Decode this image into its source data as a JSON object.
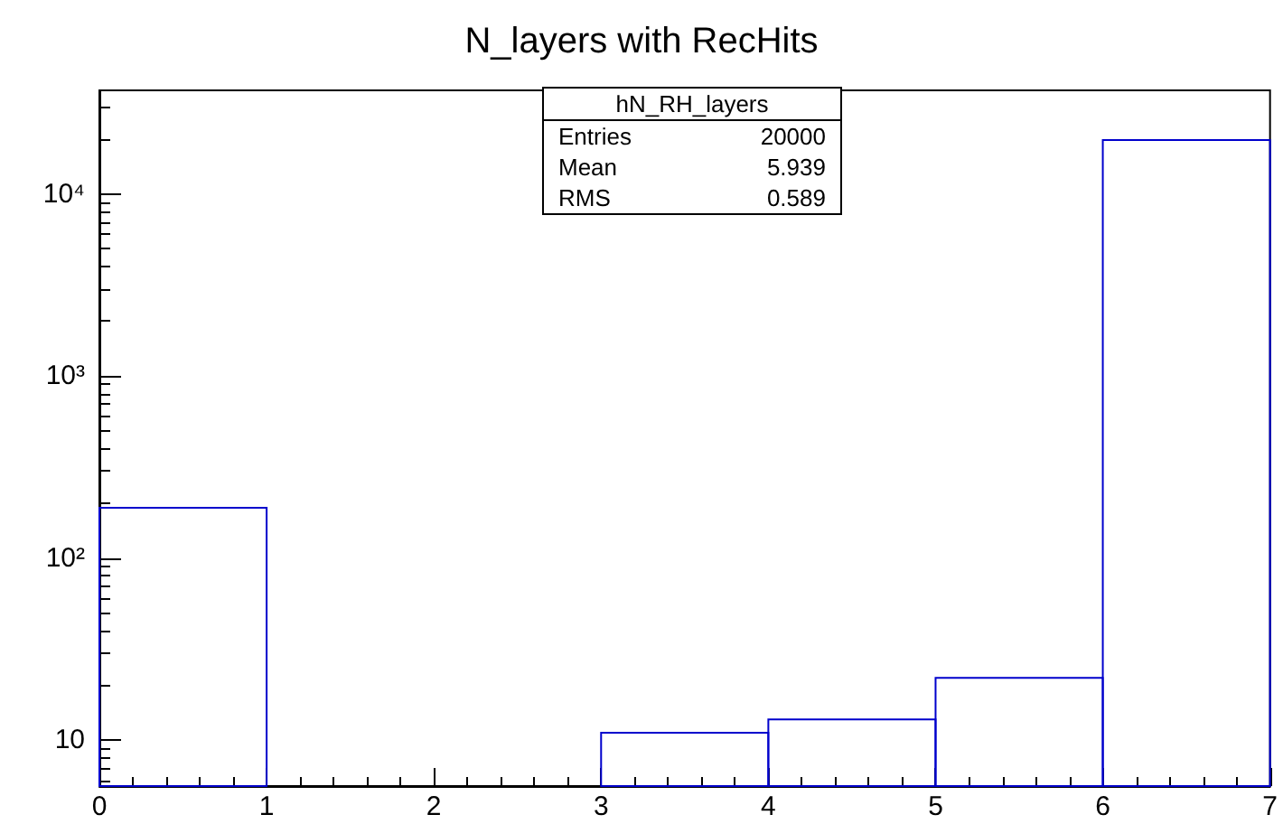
{
  "chart_data": {
    "type": "histogram",
    "title": "N_layers with RecHits",
    "bins": [
      0,
      1,
      2,
      3,
      4,
      5,
      6,
      7
    ],
    "values": [
      189,
      null,
      null,
      11,
      13,
      22,
      19765
    ],
    "color": "#0000cc",
    "log": "y",
    "xlim": [
      0,
      7
    ],
    "xticks": [
      0,
      1,
      2,
      3,
      4,
      5,
      6,
      7
    ],
    "ylim": [
      5.6,
      37000
    ],
    "yticks": [
      {
        "value": 10,
        "label": "10"
      },
      {
        "value": 100,
        "label": "10²"
      },
      {
        "value": 1000,
        "label": "10³"
      },
      {
        "value": 10000,
        "label": "10⁴"
      }
    ],
    "grid": false,
    "annotations": [
      "hN_RH_layers",
      "Entries 20000",
      "Mean 5.939",
      "RMS 0.589"
    ]
  }
}
